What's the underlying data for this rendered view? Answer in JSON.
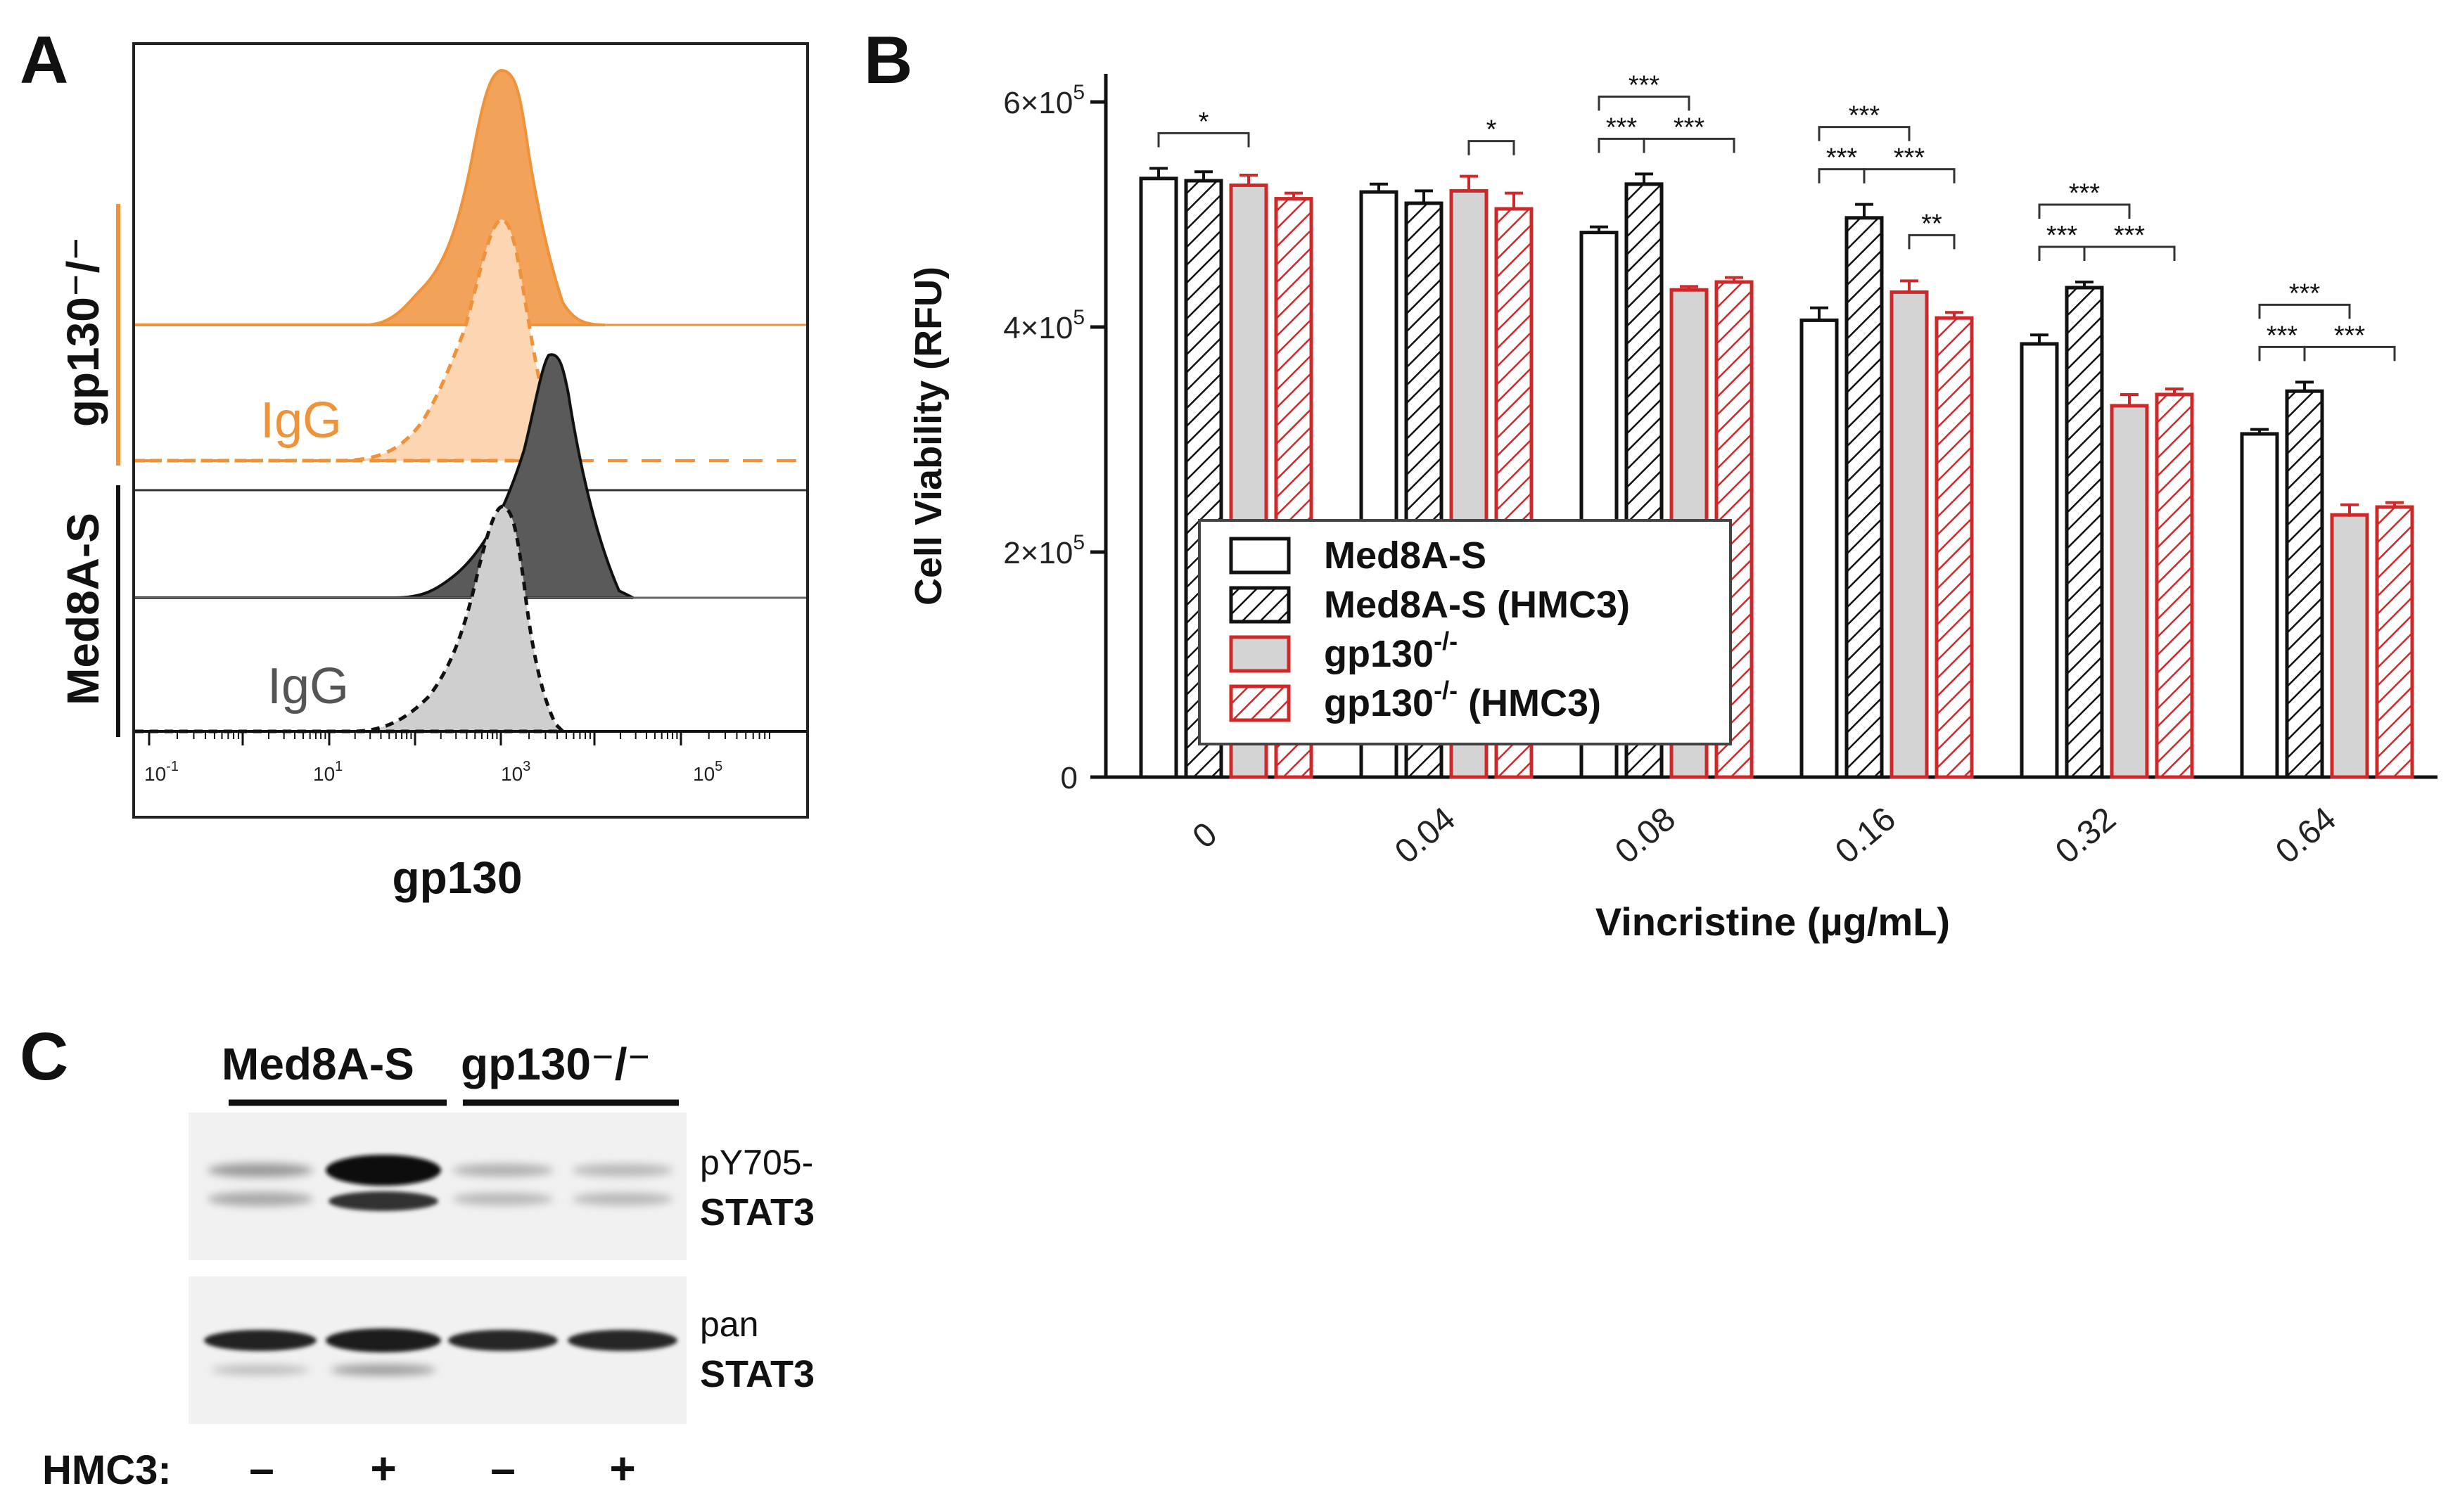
{
  "panels": {
    "a": "A",
    "b": "B",
    "c": "C"
  },
  "colors": {
    "orange": "#f0923a",
    "orange_light": "#fbd4b0",
    "dark_fill": "#5a5a5a",
    "gray_fill": "#cfcfcf",
    "red": "#cc2a2a",
    "bar_gray": "#d4d4d4"
  },
  "flow": {
    "group_gp130": "gp130⁻/⁻",
    "group_med8a": "Med8A-S",
    "igg_orange": "IgG",
    "igg_gray": "IgG",
    "xlabel": "gp130",
    "ticks": [
      {
        "base": "10",
        "exp": "-1"
      },
      {
        "base": "10",
        "exp": "1"
      },
      {
        "base": "10",
        "exp": "3"
      },
      {
        "base": "10",
        "exp": "5"
      }
    ]
  },
  "chart_data": {
    "type": "bar",
    "title": "",
    "xlabel": "Vincristine (µg/mL)",
    "ylabel": "Cell Viability (RFU)",
    "ylim": [
      0,
      600000
    ],
    "ytick_labels": [
      {
        "value": 0,
        "mant": "0",
        "exp": ""
      },
      {
        "value": 200000,
        "mant": "2×10",
        "exp": "5"
      },
      {
        "value": 400000,
        "mant": "4×10",
        "exp": "5"
      },
      {
        "value": 600000,
        "mant": "6×10",
        "exp": "5"
      }
    ],
    "categories": [
      "0",
      "0.04",
      "0.08",
      "0.16",
      "0.32",
      "0.64"
    ],
    "series": [
      {
        "name": "Med8A-S",
        "style": "open",
        "values": [
          532000,
          520000,
          484000,
          406000,
          385000,
          305000
        ],
        "errors": [
          9000,
          7000,
          5000,
          11000,
          8000,
          4000
        ]
      },
      {
        "name": "Med8A-S (HMC3)",
        "style": "hatched",
        "values": [
          530000,
          510000,
          527000,
          497000,
          435000,
          343000
        ],
        "errors": [
          8000,
          11000,
          9000,
          12000,
          5000,
          8000
        ]
      },
      {
        "name": "gp130-/-",
        "style": "red-filled",
        "values": [
          526000,
          521000,
          433000,
          431000,
          330000,
          233000
        ],
        "errors": [
          9000,
          13000,
          3000,
          10000,
          10000,
          9000
        ]
      },
      {
        "name": "gp130-/- (HMC3)",
        "style": "red-hatched",
        "values": [
          514000,
          505000,
          440000,
          408000,
          340000,
          240000
        ],
        "errors": [
          5000,
          14000,
          4000,
          5000,
          5000,
          4000
        ]
      }
    ],
    "legend_position": "center-left",
    "legend": [
      {
        "main": "Med8A-S",
        "sup": "",
        "rest": ""
      },
      {
        "main": "Med8A-S (HMC3)",
        "sup": "",
        "rest": ""
      },
      {
        "main": "gp130",
        "sup": "-/-",
        "rest": ""
      },
      {
        "main": "gp130",
        "sup": "-/-",
        "rest": " (HMC3)"
      }
    ],
    "significance": [
      {
        "group": 0,
        "from": 0,
        "to": 2,
        "level": 0,
        "label": "*"
      },
      {
        "group": 1,
        "from": 2,
        "to": 3,
        "level": 0,
        "label": "*"
      },
      {
        "group": 2,
        "from": 0,
        "to": 1,
        "level": 0,
        "label": "***"
      },
      {
        "group": 2,
        "from": 1,
        "to": 3,
        "level": 0,
        "label": "***"
      },
      {
        "group": 2,
        "from": 0,
        "to": 2,
        "level": 1,
        "label": "***"
      },
      {
        "group": 3,
        "from": 0,
        "to": 1,
        "level": 0,
        "label": "***"
      },
      {
        "group": 3,
        "from": 1,
        "to": 3,
        "level": 0,
        "label": "***"
      },
      {
        "group": 3,
        "from": 0,
        "to": 2,
        "level": 1,
        "label": "***"
      },
      {
        "group": 3,
        "from": 2,
        "to": 3,
        "level": -1,
        "label": "**"
      },
      {
        "group": 4,
        "from": 0,
        "to": 1,
        "level": 0,
        "label": "***"
      },
      {
        "group": 4,
        "from": 1,
        "to": 3,
        "level": 0,
        "label": "***"
      },
      {
        "group": 4,
        "from": 0,
        "to": 2,
        "level": 1,
        "label": "***"
      },
      {
        "group": 5,
        "from": 0,
        "to": 1,
        "level": 0,
        "label": "***"
      },
      {
        "group": 5,
        "from": 1,
        "to": 3,
        "level": 0,
        "label": "***"
      },
      {
        "group": 5,
        "from": 0,
        "to": 2,
        "level": 1,
        "label": "***"
      }
    ]
  },
  "blot": {
    "group_med8a": "Med8A-S",
    "group_gp130": "gp130⁻/⁻",
    "label1_top": "pY705-",
    "label1_bottom": "STAT3",
    "label2_top": "pan",
    "label2_bottom": "STAT3",
    "hmc3_label": "HMC3:",
    "hmc3_lanes": [
      "–",
      "+",
      "–",
      "+"
    ]
  }
}
